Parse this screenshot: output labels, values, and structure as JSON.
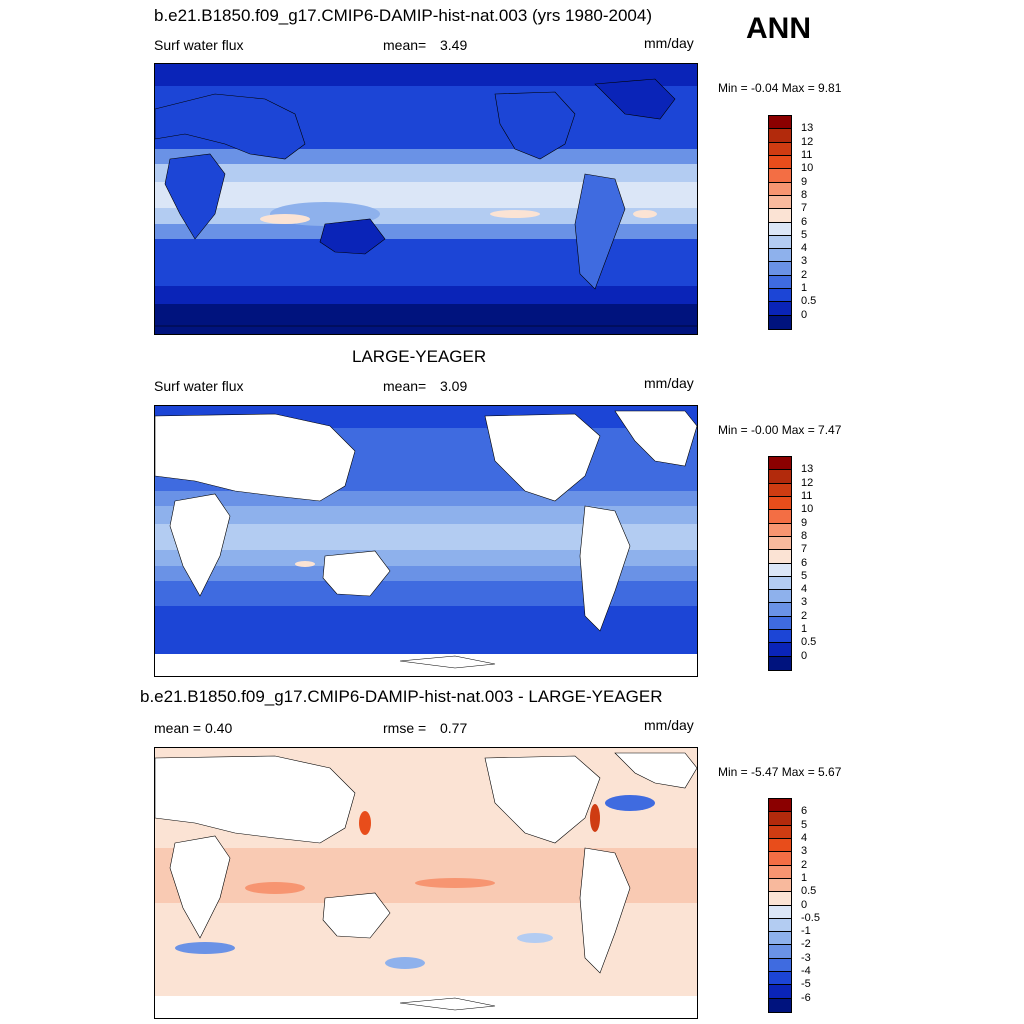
{
  "season": "ANN",
  "units": "mm/day",
  "panels": [
    {
      "id": "test",
      "title": "b.e21.B1850.f09_g17.CMIP6-DAMIP-hist-nat.003 (yrs 1980-2004)",
      "left_label": "Surf water flux",
      "center_label": "mean=",
      "center_value": "3.49",
      "units": "mm/day",
      "minmax": "Min =  -0.04 Max =   9.81",
      "colorbar": {
        "levels": [
          "13",
          "12",
          "11",
          "10",
          "9",
          "8",
          "7",
          "6",
          "5",
          "4",
          "3",
          "2",
          "1",
          "0.5",
          "0"
        ],
        "colors": [
          "#8b0000",
          "#b22a0c",
          "#cf3c12",
          "#e84d1b",
          "#f36e44",
          "#f79571",
          "#f8b99d",
          "#fbe3d4",
          "#dbe6f7",
          "#b3ccf2",
          "#8eb1ec",
          "#6a92e6",
          "#3f6be0",
          "#1c45d6",
          "#0a24b8",
          "#00137e"
        ]
      }
    },
    {
      "id": "obs",
      "title": "LARGE-YEAGER",
      "left_label": "Surf water flux",
      "center_label": "mean=",
      "center_value": "3.09",
      "units": "mm/day",
      "minmax": "Min =  -0.00 Max =   7.47",
      "colorbar": {
        "levels": [
          "13",
          "12",
          "11",
          "10",
          "9",
          "8",
          "7",
          "6",
          "5",
          "4",
          "3",
          "2",
          "1",
          "0.5",
          "0"
        ],
        "colors": [
          "#8b0000",
          "#b22a0c",
          "#cf3c12",
          "#e84d1b",
          "#f36e44",
          "#f79571",
          "#f8b99d",
          "#fbe3d4",
          "#dbe6f7",
          "#b3ccf2",
          "#8eb1ec",
          "#6a92e6",
          "#3f6be0",
          "#1c45d6",
          "#0a24b8",
          "#00137e"
        ]
      }
    },
    {
      "id": "diff",
      "title": "b.e21.B1850.f09_g17.CMIP6-DAMIP-hist-nat.003 - LARGE-YEAGER",
      "left_label": "mean =   0.40",
      "center_label": "rmse =",
      "center_value": "0.77",
      "units": "mm/day",
      "minmax": "Min =  -5.47 Max =   5.67",
      "colorbar": {
        "levels": [
          "6",
          "5",
          "4",
          "3",
          "2",
          "1",
          "0.5",
          "0",
          "-0.5",
          "-1",
          "-2",
          "-3",
          "-4",
          "-5",
          "-6"
        ],
        "colors": [
          "#8b0000",
          "#b22a0c",
          "#cf3c12",
          "#e84d1b",
          "#f36e44",
          "#f79571",
          "#f8b99d",
          "#fbe3d4",
          "#dbe6f7",
          "#b3ccf2",
          "#8eb1ec",
          "#6a92e6",
          "#3f6be0",
          "#1c45d6",
          "#0a24b8",
          "#00137e"
        ]
      }
    }
  ]
}
